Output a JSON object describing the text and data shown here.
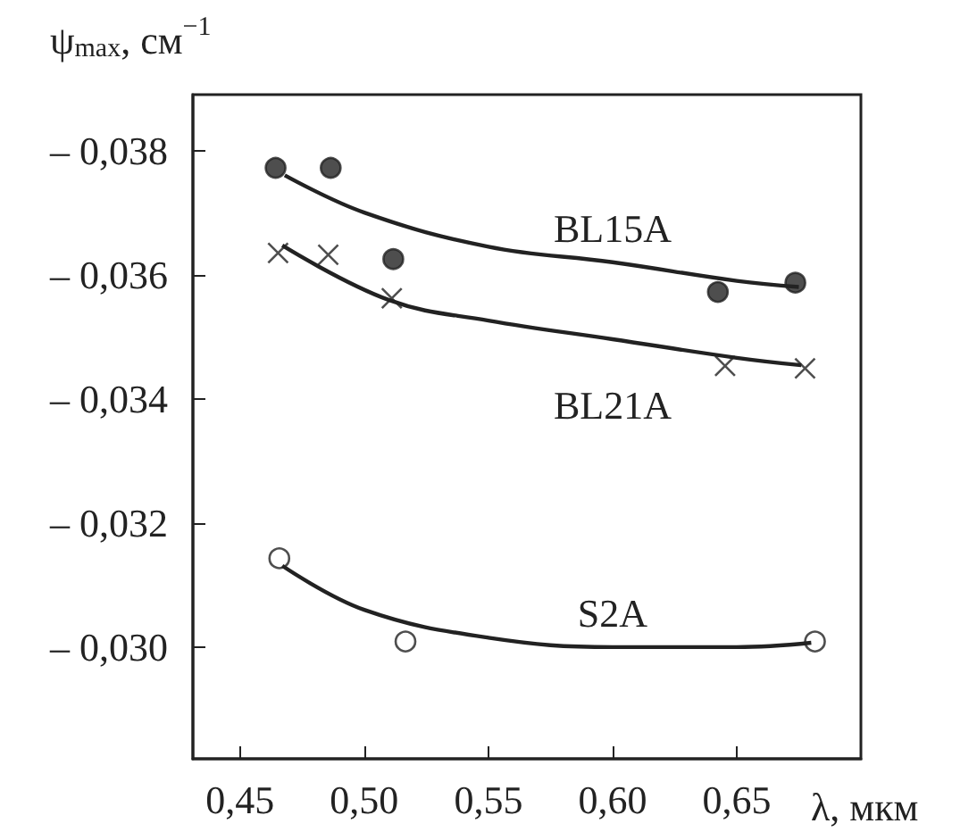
{
  "chart_data": {
    "type": "scatter",
    "ylabel": "ψ$_{max}$, см$^{−1}$",
    "xlabel": "λ, мкм",
    "xlim": [
      0.431,
      0.7
    ],
    "xticks": [
      {
        "value": 0.45,
        "label": "0,45"
      },
      {
        "value": 0.5,
        "label": "0,50"
      },
      {
        "value": 0.55,
        "label": "0,55"
      },
      {
        "value": 0.6,
        "label": "0,60"
      },
      {
        "value": 0.65,
        "label": "0,65"
      }
    ],
    "ylim": [
      -0.0282,
      -0.0389
    ],
    "yticks": [
      {
        "value": -0.038,
        "label": "– 0,038"
      },
      {
        "value": -0.036,
        "label": "– 0,036"
      },
      {
        "value": -0.034,
        "label": "– 0,034"
      },
      {
        "value": -0.032,
        "label": "– 0,032"
      },
      {
        "value": -0.03,
        "label": "– 0,030"
      }
    ],
    "grid": false,
    "legend": false,
    "series": [
      {
        "marker": "circle",
        "color": "#222222",
        "x": [
          0.4643,
          0.4865,
          0.5117,
          0.6424,
          0.6736
        ],
        "values": [
          -0.03772,
          -0.03772,
          -0.03625,
          -0.03572,
          -0.03587
        ]
      },
      {
        "marker": "cross",
        "color": "#222222",
        "x": [
          0.4653,
          0.4855,
          0.5111,
          0.6453,
          0.6775
        ],
        "values": [
          -0.03635,
          -0.03632,
          -0.03562,
          -0.03453,
          -0.03449
        ]
      },
      {
        "marker": "circle",
        "color": "#ffffff",
        "x": [
          0.4658,
          0.5166,
          0.6815
        ],
        "values": [
          -0.03143,
          -0.03009,
          -0.03009
        ]
      },
      {
        "type": "line",
        "name": "BL15A",
        "color": "#222222",
        "x": [
          0.468,
          0.5,
          0.55,
          0.6,
          0.65,
          0.675
        ],
        "values": [
          -0.0376,
          -0.037,
          -0.03645,
          -0.0362,
          -0.0359,
          -0.0358
        ]
      },
      {
        "type": "line",
        "name": "BL21A",
        "color": "#222222",
        "x": [
          0.467,
          0.51,
          0.55,
          0.6,
          0.65,
          0.676
        ],
        "values": [
          -0.03647,
          -0.03559,
          -0.03526,
          -0.03496,
          -0.03466,
          -0.03454
        ]
      },
      {
        "type": "line",
        "name": "S2A",
        "color": "#222222",
        "x": [
          0.467,
          0.5,
          0.55,
          0.6,
          0.65,
          0.68
        ],
        "values": [
          -0.03131,
          -0.0306,
          -0.03015,
          -0.03,
          -0.03,
          -0.03007
        ]
      }
    ]
  }
}
